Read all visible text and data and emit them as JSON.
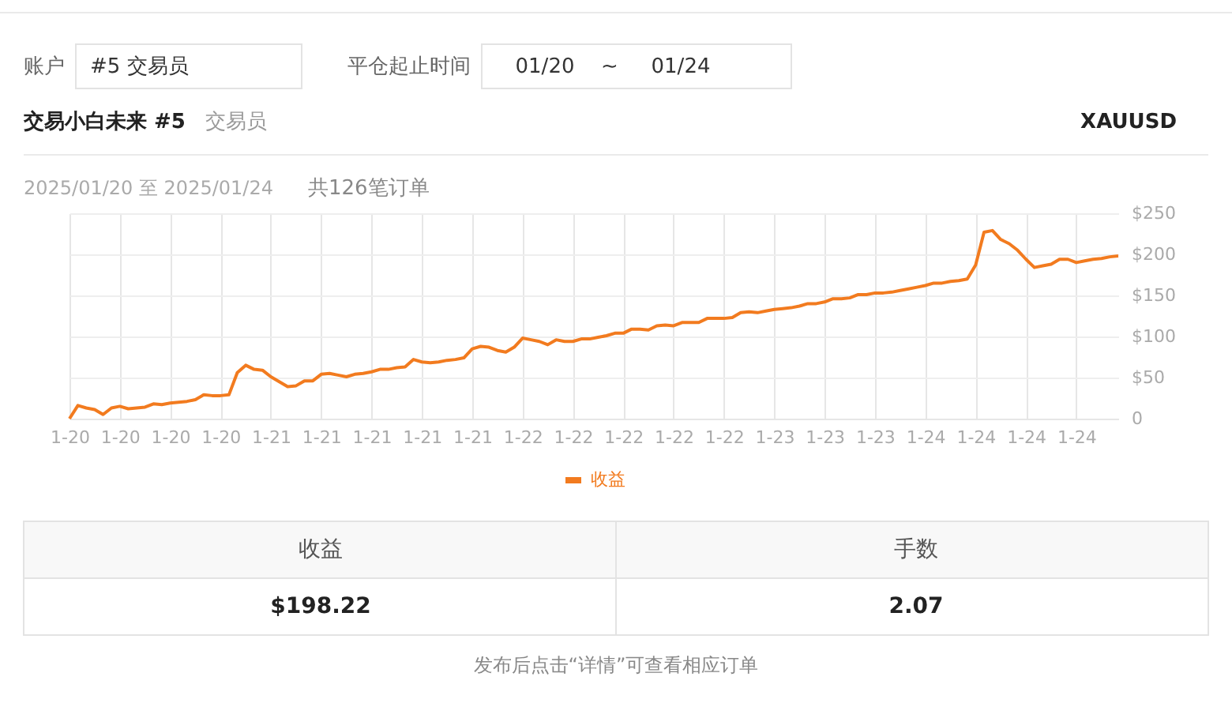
{
  "chart_data": {
    "type": "line",
    "categories": [
      "1-20",
      null,
      null,
      null,
      null,
      null,
      "1-20",
      null,
      null,
      null,
      null,
      null,
      "1-20",
      null,
      null,
      null,
      null,
      null,
      "1-20",
      null,
      null,
      null,
      null,
      null,
      "1-21",
      null,
      null,
      null,
      null,
      null,
      "1-21",
      null,
      null,
      null,
      null,
      null,
      "1-21",
      null,
      null,
      null,
      null,
      null,
      "1-21",
      null,
      null,
      null,
      null,
      null,
      "1-21",
      null,
      null,
      null,
      null,
      null,
      "1-22",
      null,
      null,
      null,
      null,
      null,
      "1-22",
      null,
      null,
      null,
      null,
      null,
      "1-22",
      null,
      null,
      null,
      null,
      null,
      "1-22",
      null,
      null,
      null,
      null,
      null,
      "1-22",
      null,
      null,
      null,
      null,
      null,
      "1-23",
      null,
      null,
      null,
      null,
      null,
      "1-23",
      null,
      null,
      null,
      null,
      null,
      "1-23",
      null,
      null,
      null,
      null,
      null,
      "1-24",
      null,
      null,
      null,
      null,
      null,
      "1-24",
      null,
      null,
      null,
      null,
      null,
      "1-24",
      null,
      null,
      null,
      null,
      null,
      "1-24",
      null,
      null,
      null,
      null,
      null
    ],
    "series": [
      {
        "name": "收益",
        "color": "#f27b1f",
        "values": [
          0,
          16,
          13,
          11,
          5,
          13,
          15,
          12,
          13,
          14,
          18,
          17,
          19,
          20,
          21,
          23,
          29,
          28,
          28,
          29,
          56,
          65,
          60,
          59,
          51,
          45,
          39,
          40,
          46,
          46,
          54,
          55,
          53,
          51,
          54,
          55,
          57,
          60,
          60,
          62,
          63,
          72,
          69,
          68,
          69,
          71,
          72,
          74,
          85,
          88,
          87,
          83,
          81,
          87,
          98,
          96,
          94,
          90,
          96,
          94,
          94,
          97,
          97,
          99,
          101,
          104,
          104,
          109,
          109,
          108,
          113,
          114,
          113,
          117,
          117,
          117,
          122,
          122,
          122,
          123,
          129,
          130,
          129,
          131,
          133,
          134,
          135,
          137,
          140,
          140,
          142,
          146,
          146,
          147,
          151,
          151,
          153,
          153,
          154,
          156,
          158,
          160,
          162,
          165,
          165,
          167,
          168,
          170,
          187,
          227,
          229,
          218,
          213,
          205,
          194,
          184,
          186,
          188,
          194,
          194,
          190,
          192,
          194,
          195,
          197,
          198
        ]
      }
    ],
    "ylim": [
      0,
      250
    ],
    "yticks": [
      0,
      {
        "value": 50,
        "label": "$50"
      },
      {
        "value": 100,
        "label": "$100"
      },
      {
        "value": 150,
        "label": "$150"
      },
      {
        "value": 200,
        "label": "$200"
      },
      {
        "value": 250,
        "label": "$250"
      }
    ],
    "grid": true,
    "legend": "bottom",
    "marker": "none",
    "line_style": "solid",
    "annotations": [
      "账户",
      "#5 交易员",
      "平仓起止时间",
      "01/20",
      "~",
      "01/24",
      "交易小白未来 #5",
      "交易员",
      "XAUUSD",
      "2025/01/20 至 2025/01/24",
      "共126笔订单",
      "收益",
      "手数",
      "$198.22",
      "2.07",
      "发布后点击“详情”可查看相应订单"
    ]
  }
}
